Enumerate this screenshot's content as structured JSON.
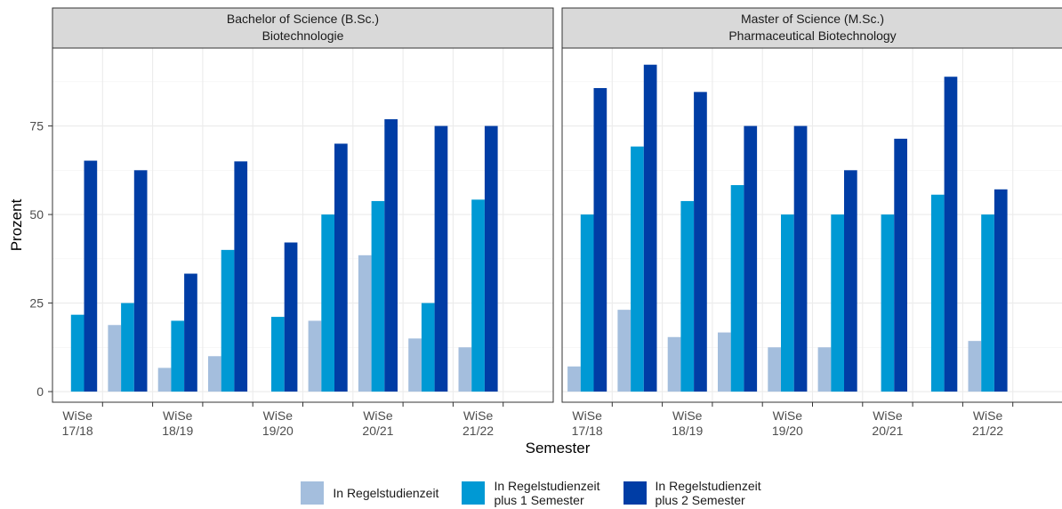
{
  "chart_data": {
    "type": "bar",
    "xlabel": "Semester",
    "ylabel": "Prozent",
    "ylim": [
      -3,
      97
    ],
    "yticks": [
      0,
      25,
      50,
      75
    ],
    "grid": true,
    "legend_position": "bottom",
    "series": [
      {
        "name": "In Regelstudienzeit",
        "color": "#a4bedd"
      },
      {
        "name": "In Regelstudienzeit\nplus 1 Semester",
        "color": "#0099d4"
      },
      {
        "name": "In Regelstudienzeit\nplus 2 Semester",
        "color": "#003da5"
      }
    ],
    "panels": [
      {
        "title_line1": "Bachelor of Science (B.Sc.)",
        "title_line2": "Biotechnologie",
        "tick_labels": [
          {
            "line1": "WiSe",
            "line2": "17/18"
          },
          {
            "line1": "WiSe",
            "line2": "18/19"
          },
          {
            "line1": "WiSe",
            "line2": "19/20"
          },
          {
            "line1": "WiSe",
            "line2": "20/21"
          },
          {
            "line1": "WiSe",
            "line2": "21/22"
          }
        ],
        "groups": [
          [
            null,
            21.7,
            65.2
          ],
          [
            18.8,
            25.0,
            62.5
          ],
          [
            6.7,
            20.0,
            33.3
          ],
          [
            10.0,
            40.0,
            65.0
          ],
          [
            null,
            21.1,
            42.1
          ],
          [
            20.0,
            50.0,
            70.0
          ],
          [
            38.5,
            53.8,
            76.9
          ],
          [
            15.0,
            25.0,
            75.0
          ],
          [
            12.5,
            54.2,
            75.0
          ]
        ]
      },
      {
        "title_line1": "Master of Science (M.Sc.)",
        "title_line2": "Pharmaceutical Biotechnology",
        "tick_labels": [
          {
            "line1": "WiSe",
            "line2": "17/18"
          },
          {
            "line1": "WiSe",
            "line2": "18/19"
          },
          {
            "line1": "WiSe",
            "line2": "19/20"
          },
          {
            "line1": "WiSe",
            "line2": "20/21"
          },
          {
            "line1": "WiSe",
            "line2": "21/22"
          }
        ],
        "groups": [
          [
            7.1,
            50.0,
            85.7
          ],
          [
            23.1,
            69.2,
            92.3
          ],
          [
            15.4,
            53.8,
            84.6
          ],
          [
            16.7,
            58.3,
            75.0
          ],
          [
            12.5,
            50.0,
            75.0
          ],
          [
            12.5,
            50.0,
            62.5
          ],
          [
            null,
            50.0,
            71.4
          ],
          [
            null,
            55.6,
            88.9
          ],
          [
            14.3,
            50.0,
            57.1
          ]
        ]
      }
    ]
  }
}
